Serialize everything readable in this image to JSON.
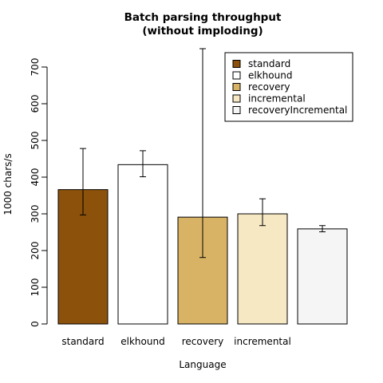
{
  "chart_data": {
    "type": "bar",
    "title": [
      "Batch parsing throughput",
      "(without imploding)"
    ],
    "xlabel": "Language",
    "ylabel": "1000 chars/s",
    "ylim": [
      0,
      700
    ],
    "yticks": [
      0,
      100,
      200,
      300,
      400,
      500,
      600,
      700
    ],
    "categories": [
      "standard",
      "elkhound",
      "recovery",
      "incremental",
      "recoveryIncremental"
    ],
    "category_labels_shown": [
      "standard",
      "elkhound",
      "recovery",
      "incremental",
      ""
    ],
    "values": [
      366,
      434,
      291,
      300,
      259
    ],
    "error_low": [
      297,
      401,
      181,
      268,
      251
    ],
    "error_high": [
      478,
      472,
      750,
      341,
      268
    ],
    "colors": [
      "#8c510a",
      "#ffffff",
      "#d8b365",
      "#f6e8c3",
      "#f5f5f5"
    ],
    "legend": {
      "placement": "top-right",
      "entries": [
        "standard",
        "elkhound",
        "recovery",
        "incremental",
        "recoveryIncremental"
      ]
    },
    "grid": false
  }
}
